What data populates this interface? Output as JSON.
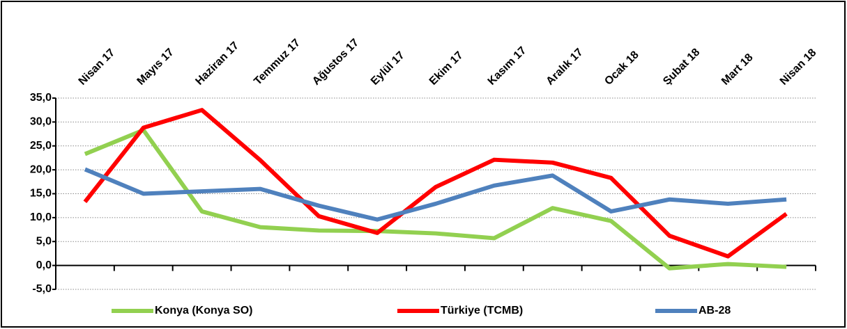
{
  "chart_data": {
    "type": "line",
    "categories": [
      "Nisan 17",
      "Mayıs 17",
      "Haziran 17",
      "Temmuz 17",
      "Ağustos 17",
      "Eylül 17",
      "Ekim 17",
      "Kasım 17",
      "Aralık 17",
      "Ocak 18",
      "Şubat 18",
      "Mart 18",
      "Nisan 18"
    ],
    "series": [
      {
        "name": "Konya (Konya SO)",
        "color": "#92d050",
        "values": [
          23.3,
          28.3,
          11.3,
          8.0,
          7.3,
          7.2,
          6.7,
          5.7,
          12.0,
          9.3,
          -0.6,
          0.3,
          -0.3
        ]
      },
      {
        "name": "Türkiye (TCMB)",
        "color": "#ff0000",
        "values": [
          13.3,
          28.8,
          32.5,
          22.0,
          10.3,
          6.8,
          16.4,
          22.1,
          21.5,
          18.3,
          6.2,
          1.9,
          10.8
        ]
      },
      {
        "name": "AB-28",
        "color": "#4f81bd",
        "values": [
          20.1,
          15.0,
          15.5,
          16.0,
          12.5,
          9.6,
          12.9,
          16.7,
          18.8,
          11.3,
          13.8,
          12.9,
          13.8
        ]
      }
    ],
    "ylim": [
      -5,
      35
    ],
    "yticks": [
      {
        "value": -5,
        "label": "-5,0"
      },
      {
        "value": 0,
        "label": "0,0"
      },
      {
        "value": 5,
        "label": "5,0"
      },
      {
        "value": 10,
        "label": "10,0"
      },
      {
        "value": 15,
        "label": "15,0"
      },
      {
        "value": 20,
        "label": "20,0"
      },
      {
        "value": 25,
        "label": "25,0"
      },
      {
        "value": 30,
        "label": "30,0"
      },
      {
        "value": 35,
        "label": "35,0"
      }
    ],
    "grid": true,
    "legend": "bottom"
  }
}
